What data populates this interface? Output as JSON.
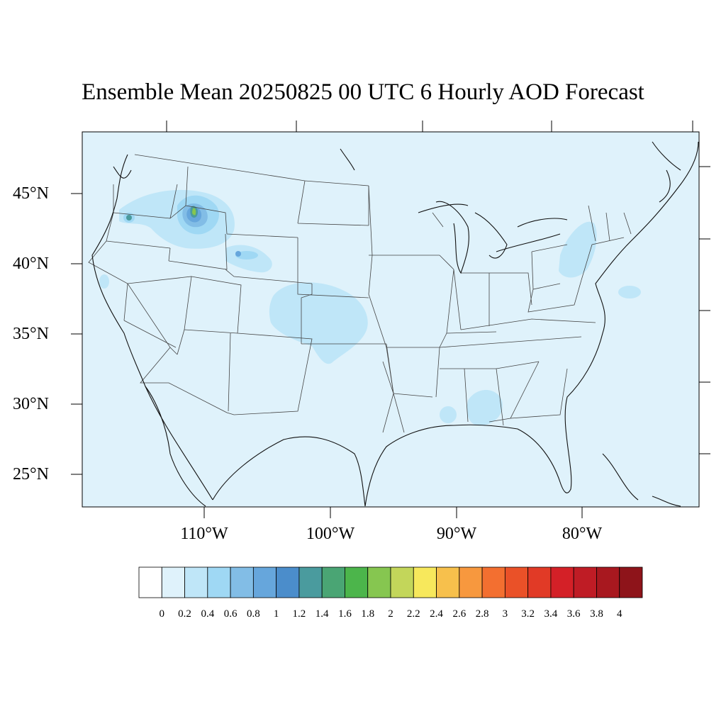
{
  "title": "Ensemble Mean 20250825 00 UTC 6 Hourly AOD Forecast",
  "map": {
    "projection": "lambert-conformal",
    "region": "CONUS",
    "background_color": "#dff2fb",
    "lat_labels": [
      "45°N",
      "40°N",
      "35°N",
      "30°N",
      "25°N"
    ],
    "lon_labels": [
      "110°W",
      "100°W",
      "90°W",
      "80°W"
    ],
    "field": "aerosol optical depth",
    "features": [
      {
        "name": "northern-rockies-smoke",
        "max_value": 1.8
      },
      {
        "name": "wyoming-smoke",
        "max_value": 0.8
      },
      {
        "name": "central-plains-smoke",
        "max_value": 0.6
      },
      {
        "name": "northeast-smoke",
        "max_value": 0.6
      },
      {
        "name": "gulf-coast-smoke",
        "max_value": 0.6
      }
    ]
  },
  "colorbar": {
    "labels": [
      "0",
      "0.2",
      "0.4",
      "0.6",
      "0.8",
      "1",
      "1.2",
      "1.4",
      "1.6",
      "1.8",
      "2",
      "2.2",
      "2.4",
      "2.6",
      "2.8",
      "3",
      "3.2",
      "3.4",
      "3.6",
      "3.8",
      "4"
    ],
    "colors": [
      "#ffffff",
      "#dff2fb",
      "#bfe6f8",
      "#9fd8f4",
      "#82bde6",
      "#66a6dc",
      "#4b8dcb",
      "#4a9b9e",
      "#4aa574",
      "#4cb54b",
      "#86c650",
      "#c3d65a",
      "#f7e85c",
      "#f7c04c",
      "#f7983e",
      "#f36f30",
      "#ea5128",
      "#e13a26",
      "#d42027",
      "#bf1c25",
      "#a8181f",
      "#8e141a"
    ]
  }
}
